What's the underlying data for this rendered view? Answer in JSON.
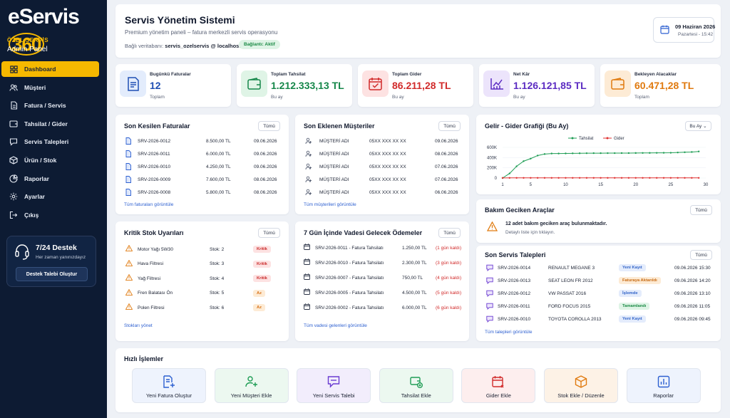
{
  "brand": {
    "name": "eServis",
    "num": "360",
    "org": "ÖZEL SERVİS",
    "panel": "Admin Panel"
  },
  "nav": [
    {
      "label": "Dashboard",
      "icon": "dashboard-icon",
      "active": true
    },
    {
      "label": "Müşteri",
      "icon": "users-icon"
    },
    {
      "label": "Fatura / Servis",
      "icon": "document-icon"
    },
    {
      "label": "Tahsilat / Gider",
      "icon": "wallet-icon"
    },
    {
      "label": "Servis Talepleri",
      "icon": "service-icon"
    },
    {
      "label": "Ürün / Stok",
      "icon": "box-icon"
    },
    {
      "label": "Raporlar",
      "icon": "chart-icon"
    },
    {
      "label": "Ayarlar",
      "icon": "gear-icon"
    },
    {
      "label": "Çıkış",
      "icon": "logout-icon"
    }
  ],
  "support": {
    "title": "7/24 Destek",
    "subtitle": "Her zaman yanınızdayız",
    "button": "Destek Talebi Oluştur"
  },
  "header": {
    "title": "Servis Yönetim Sistemi",
    "subtitle": "Premium yönetim paneli – fatura merkezli servis operasyonu",
    "db_label": "Bağlı veritabanı:",
    "db_value": "servis_ozelservis @ localhost",
    "status": "Bağlantı: Aktif",
    "date": "09 Haziran 2026",
    "day_time": "Pazartesi - 15:42"
  },
  "stats": [
    {
      "label": "Bugünkü Faturalar",
      "value": "12",
      "caption": "Toplam",
      "color": "#1f4fb3",
      "bg": "#e3ecfc"
    },
    {
      "label": "Toplam Tahsilat",
      "value": "1.212.333,13 TL",
      "caption": "Bu ay",
      "color": "#16874a",
      "bg": "#dff4e6"
    },
    {
      "label": "Toplam Gider",
      "value": "86.211,28 TL",
      "caption": "Bu ay",
      "color": "#d12b2b",
      "bg": "#fde2e2"
    },
    {
      "label": "Net Kâr",
      "value": "1.126.121,85 TL",
      "caption": "Bu ay",
      "color": "#5b2bc2",
      "bg": "#ece4fb"
    },
    {
      "label": "Bekleyen Alacaklar",
      "value": "60.471,28 TL",
      "caption": "Toplam",
      "color": "#e07a0f",
      "bg": "#fdebd5"
    }
  ],
  "invoices": {
    "title": "Son Kesilen Faturalar",
    "btn": "Tümü",
    "link": "Tüm faturaları görüntüle",
    "rows": [
      {
        "no": "SRV-2026-0012",
        "amount": "8.500,00 TL",
        "date": "09.06.2026"
      },
      {
        "no": "SRV-2026-0011",
        "amount": "6.000,00 TL",
        "date": "09.06.2026"
      },
      {
        "no": "SRV-2026-0010",
        "amount": "4.250,00 TL",
        "date": "09.06.2026"
      },
      {
        "no": "SRV-2026-0009",
        "amount": "7.600,00 TL",
        "date": "08.06.2026"
      },
      {
        "no": "SRV-2026-0008",
        "amount": "5.800,00 TL",
        "date": "08.06.2026"
      }
    ]
  },
  "customers": {
    "title": "Son Eklenen Müşteriler",
    "btn": "Tümü",
    "link": "Tüm müşterileri görüntüle",
    "rows": [
      {
        "name": "MÜŞTERİ ADI",
        "phone": "05XX XXX XX XX",
        "date": "09.06.2026"
      },
      {
        "name": "MÜŞTERİ ADI",
        "phone": "05XX XXX XX XX",
        "date": "08.06.2026"
      },
      {
        "name": "MÜŞTERİ ADI",
        "phone": "05XX XXX XX XX",
        "date": "07.06.2026"
      },
      {
        "name": "MÜŞTERİ ADI",
        "phone": "05XX XXX XX XX",
        "date": "07.06.2026"
      },
      {
        "name": "MÜŞTERİ ADI",
        "phone": "05XX XXX XX XX",
        "date": "06.06.2026"
      }
    ]
  },
  "stock": {
    "title": "Kritik Stok Uyarıları",
    "btn": "Tümü",
    "link": "Stokları yönet",
    "rows": [
      {
        "name": "Motor Yağı 5W30",
        "qty": "Stok: 2",
        "badge": "Kritik",
        "type": "crit"
      },
      {
        "name": "Hava Filtresi",
        "qty": "Stok: 3",
        "badge": "Kritik",
        "type": "crit"
      },
      {
        "name": "Yağ Filtresi",
        "qty": "Stok: 4",
        "badge": "Kritik",
        "type": "crit"
      },
      {
        "name": "Fren Balatası Ön",
        "qty": "Stok: 5",
        "badge": "Az",
        "type": "low"
      },
      {
        "name": "Polen Filtresi",
        "qty": "Stok: 6",
        "badge": "Az",
        "type": "low"
      }
    ]
  },
  "payments": {
    "title": "7 Gün İçinde Vadesi Gelecek Ödemeler",
    "btn": "Tümü",
    "link": "Tüm vadesi gelenleri görüntüle",
    "rows": [
      {
        "desc": "SRV-2026-0011 - Fatura Tahsilatı",
        "amount": "1.250,00 TL",
        "days": "(1 gün kaldı)"
      },
      {
        "desc": "SRV-2026-0010 - Fatura Tahsilatı",
        "amount": "2.300,00 TL",
        "days": "(3 gün kaldı)"
      },
      {
        "desc": "SRV-2026-0007 - Fatura Tahsilatı",
        "amount": "750,00 TL",
        "days": "(4 gün kaldı)"
      },
      {
        "desc": "SRV-2026-0005 - Fatura Tahsilatı",
        "amount": "4.500,00 TL",
        "days": "(5 gün kaldı)"
      },
      {
        "desc": "SRV-2026-0002 - Fatura Tahsilatı",
        "amount": "6.000,00 TL",
        "days": "(6 gün kaldı)"
      }
    ]
  },
  "chart_panel": {
    "title": "Gelir - Gider Grafiği (Bu Ay)",
    "period": "Bu Ay"
  },
  "chart_data": {
    "type": "line",
    "x": [
      1,
      2,
      3,
      4,
      5,
      6,
      7,
      8,
      9,
      10,
      11,
      12,
      13,
      14,
      15,
      16,
      17,
      18,
      19,
      20,
      21,
      22,
      23,
      24,
      25,
      26,
      27,
      28,
      29
    ],
    "series": [
      {
        "name": "Tahsilat",
        "color": "#1f9d55",
        "values": [
          0,
          90000,
          230000,
          330000,
          380000,
          440000,
          470000,
          480000,
          480000,
          482000,
          484000,
          485000,
          486000,
          487000,
          487000,
          488000,
          488000,
          489000,
          489000,
          490000,
          491000,
          492000,
          493000,
          494000,
          495000,
          500000,
          505000,
          510000,
          520000
        ]
      },
      {
        "name": "Gider",
        "color": "#e03131",
        "values": [
          2000,
          3000,
          3000,
          3000,
          3000,
          3000,
          3000,
          3000,
          3000,
          3000,
          3000,
          3000,
          3000,
          3000,
          3000,
          3000,
          3000,
          3000,
          3000,
          3000,
          3000,
          3000,
          3000,
          3000,
          3000,
          3000,
          3000,
          3000,
          3000
        ]
      }
    ],
    "y_ticks": [
      "0",
      "200K",
      "400K",
      "600K"
    ],
    "x_ticks": [
      "1",
      "5",
      "10",
      "15",
      "20",
      "25",
      "30"
    ],
    "ylim": [
      0,
      600000
    ],
    "xlim": [
      1,
      30
    ],
    "legend": "top-center"
  },
  "maintenance": {
    "title": "Bakım Geciken Araçlar",
    "btn": "Tümü",
    "msg": "12 adet bakım geciken araç bulunmaktadır.",
    "detail": "Detaylı liste için tıklayın."
  },
  "requests": {
    "title": "Son Servis Talepleri",
    "btn": "Tümü",
    "link": "Tüm talepleri görüntüle",
    "rows": [
      {
        "no": "SRV-2026-0014",
        "car": "RENAULT MEGANE 3",
        "status": "Yeni Kayıt",
        "type": "new",
        "date": "09.06.2026 15:30"
      },
      {
        "no": "SRV-2026-0013",
        "car": "SEAT LEON FR 2012",
        "status": "Faturaya Aktarıldı",
        "type": "fat",
        "date": "09.06.2026 14:20"
      },
      {
        "no": "SRV-2026-0012",
        "car": "VW PASSAT 2016",
        "status": "İşlemde",
        "type": "isl",
        "date": "09.06.2026 13:10"
      },
      {
        "no": "SRV-2026-0011",
        "car": "FORD FOCUS 2015",
        "status": "Tamamlandı",
        "type": "tam",
        "date": "09.06.2026 11:05"
      },
      {
        "no": "SRV-2026-0010",
        "car": "TOYOTA COROLLA 2013",
        "status": "Yeni Kayıt",
        "type": "new",
        "date": "09.06.2026 09:45"
      }
    ]
  },
  "quick": {
    "title": "Hızlı İşlemler",
    "items": [
      {
        "label": "Yeni Fatura Oluştur",
        "color": "#2c5fd0",
        "bg": "#eef3fd",
        "icon": "invoice-add-icon"
      },
      {
        "label": "Yeni Müşteri Ekle",
        "color": "#1f9d55",
        "bg": "#ecf8f0",
        "icon": "user-add-icon"
      },
      {
        "label": "Yeni Servis Talebi",
        "color": "#6a3bd1",
        "bg": "#f2edfc",
        "icon": "service-add-icon"
      },
      {
        "label": "Tahsilat Ekle",
        "color": "#1f9d55",
        "bg": "#ecf8f0",
        "icon": "payment-add-icon"
      },
      {
        "label": "Gider Ekle",
        "color": "#d12b2b",
        "bg": "#fdeeee",
        "icon": "expense-add-icon"
      },
      {
        "label": "Stok Ekle / Düzenle",
        "color": "#e07a0f",
        "bg": "#fdf2e6",
        "icon": "stock-icon"
      },
      {
        "label": "Raporlar",
        "color": "#2c5fd0",
        "bg": "#eef3fd",
        "icon": "report-icon"
      }
    ]
  }
}
